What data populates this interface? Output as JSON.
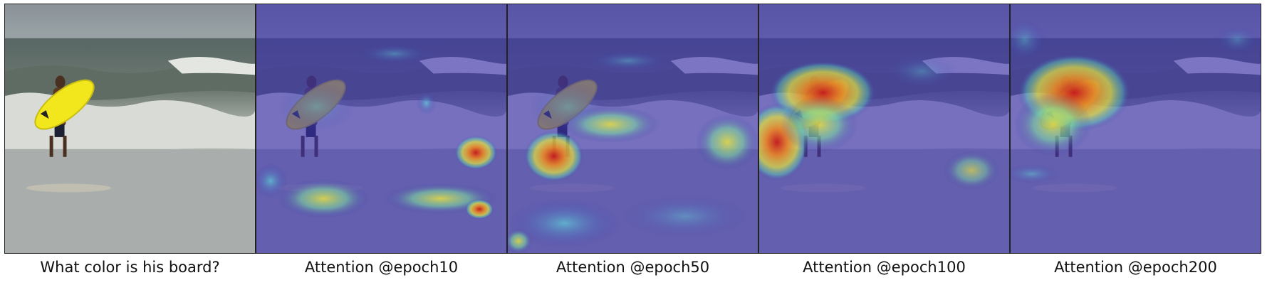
{
  "figure": {
    "captions": [
      "What color is his board?",
      "Attention @epoch10",
      "Attention @epoch50",
      "Attention @epoch100",
      "Attention @epoch200"
    ]
  },
  "scene": {
    "subject": "surfer-holding-surfboard",
    "board_color": "#f2e61c",
    "overlay_color": "#3a2fb0"
  }
}
